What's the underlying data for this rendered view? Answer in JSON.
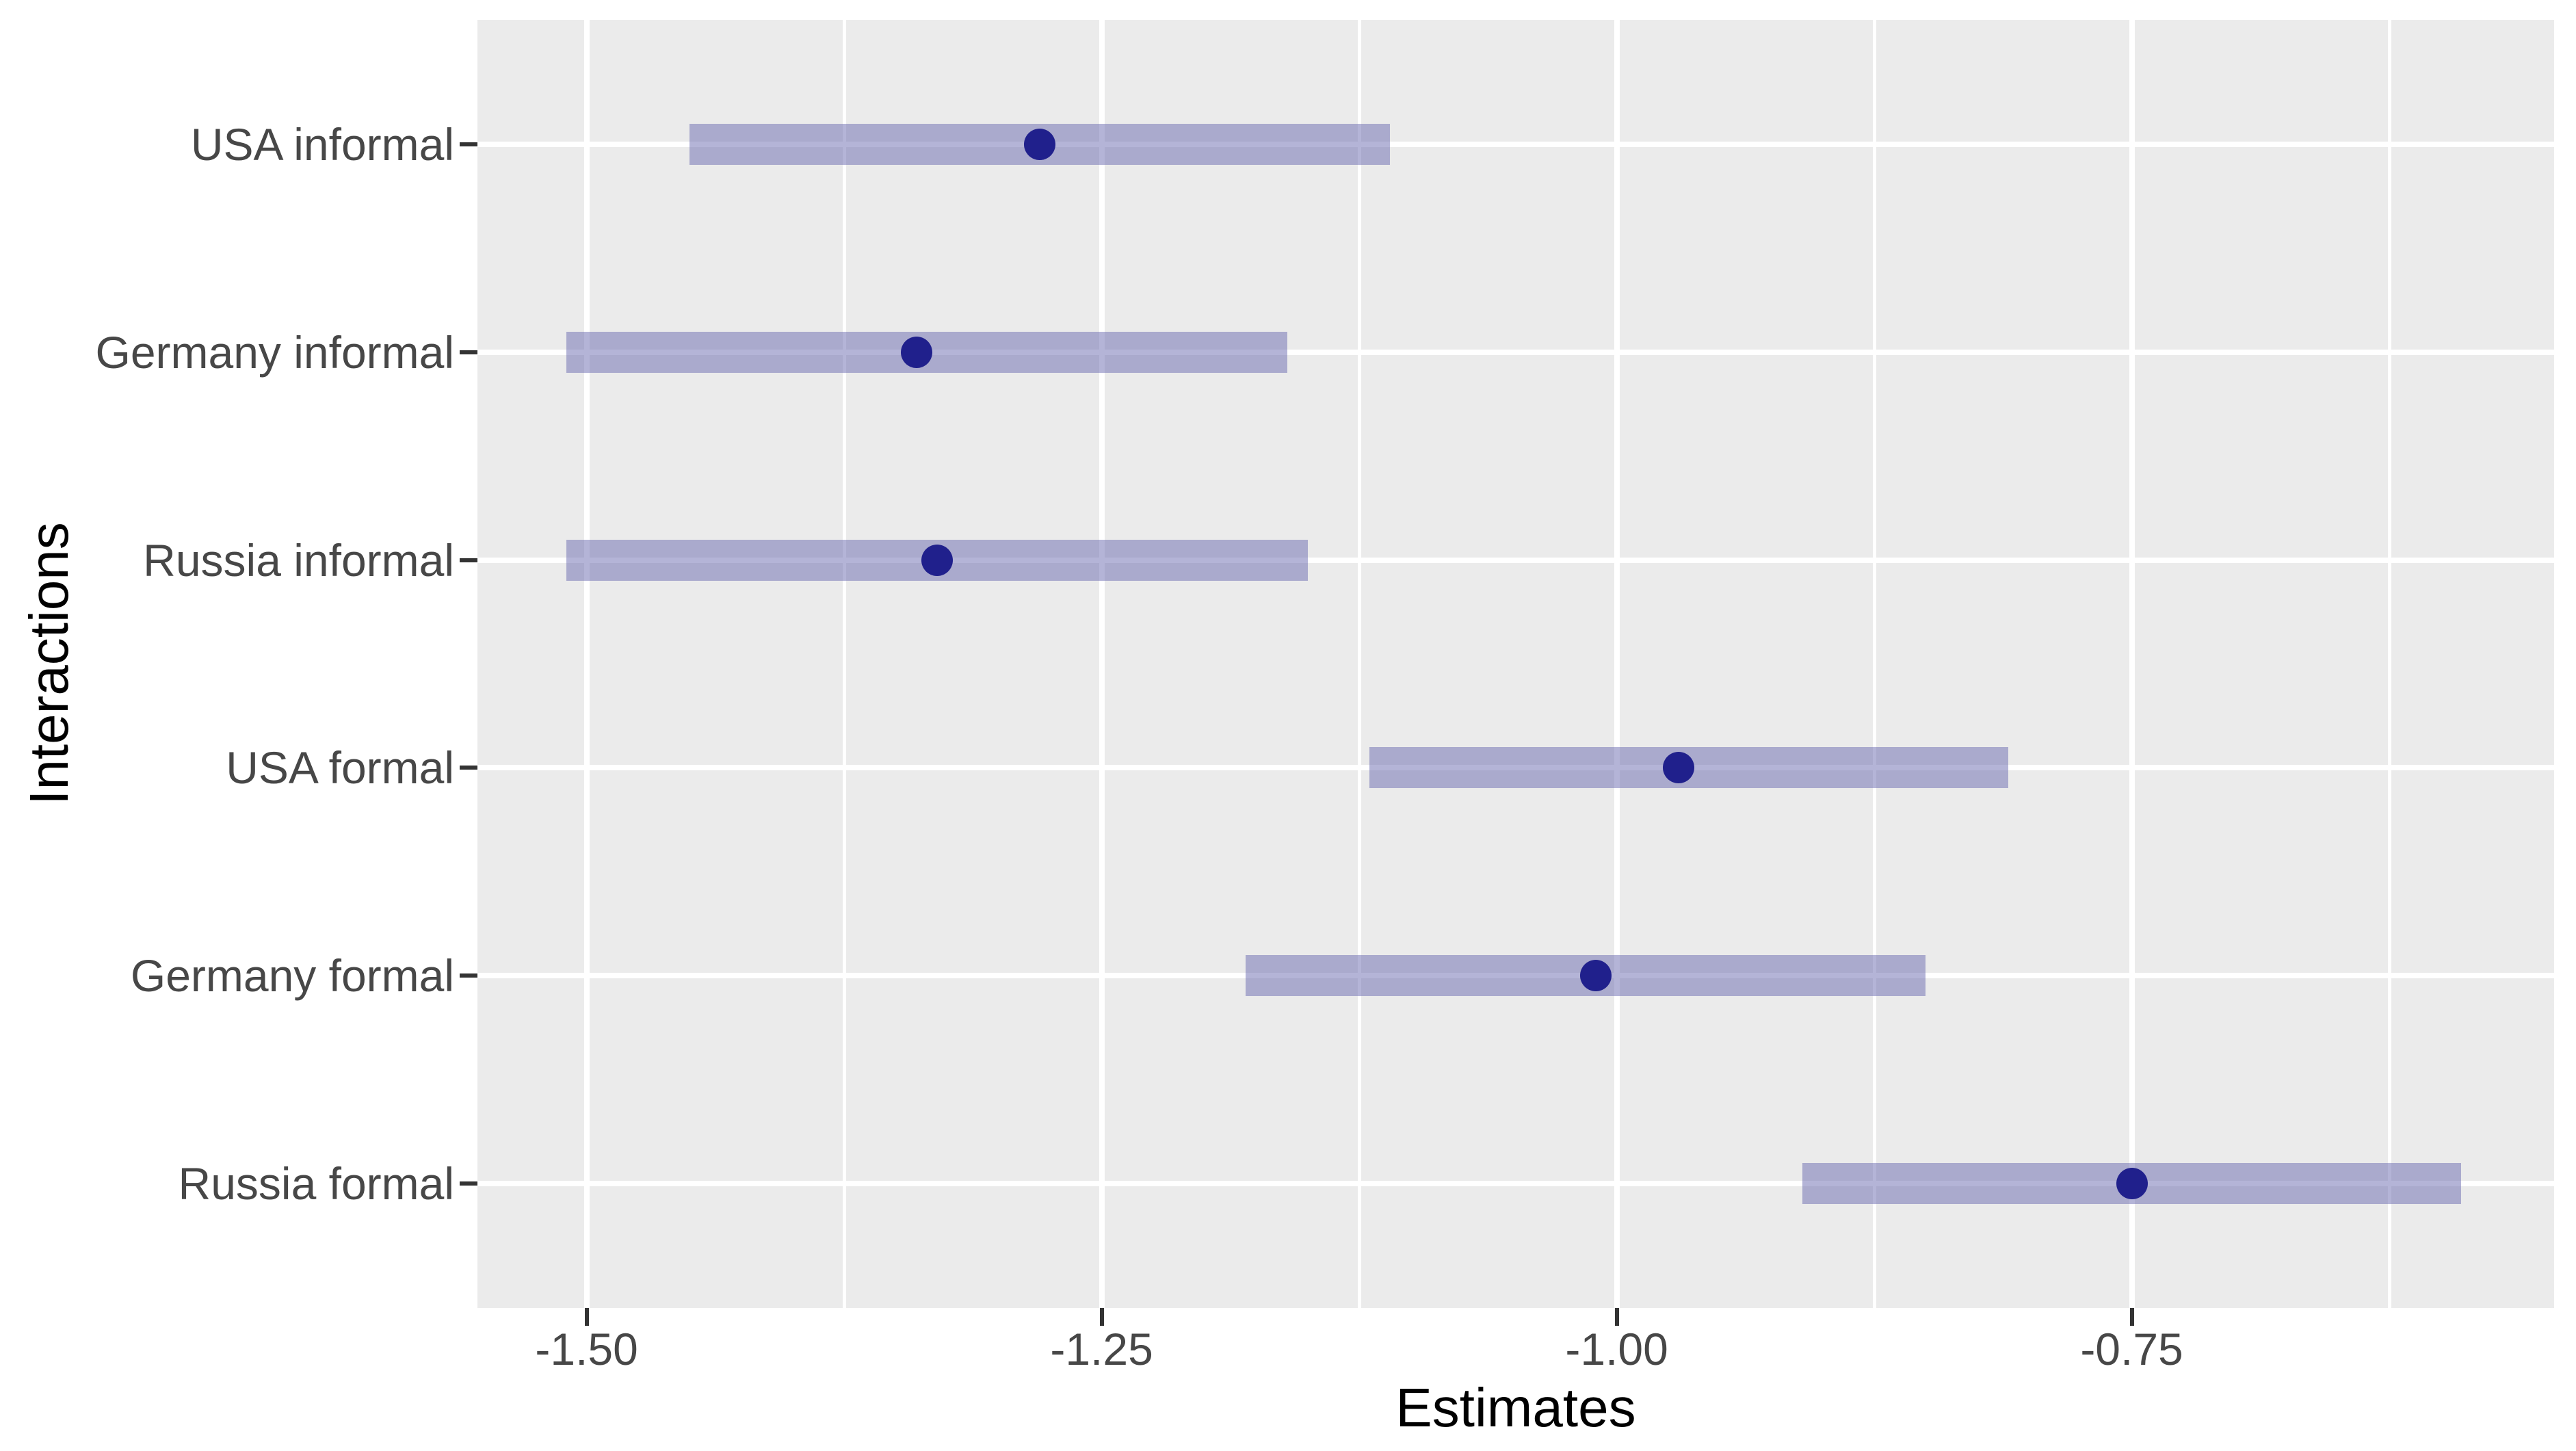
{
  "chart_data": {
    "type": "scatter",
    "subtype": "coefficient-pointrange-plot",
    "title": "",
    "xlabel": "Estimates",
    "ylabel": "Interactions",
    "categories": [
      "USA informal",
      "Germany informal",
      "Russia informal",
      "USA formal",
      "Germany formal",
      "Russia formal"
    ],
    "series": [
      {
        "name": "estimates-with-confidence-intervals",
        "points": [
          {
            "label": "USA informal",
            "estimate": -1.28,
            "ci_low": -1.45,
            "ci_high": -1.11
          },
          {
            "label": "Germany informal",
            "estimate": -1.34,
            "ci_low": -1.51,
            "ci_high": -1.16
          },
          {
            "label": "Russia informal",
            "estimate": -1.33,
            "ci_low": -1.51,
            "ci_high": -1.15
          },
          {
            "label": "USA formal",
            "estimate": -0.97,
            "ci_low": -1.12,
            "ci_high": -0.81
          },
          {
            "label": "Germany formal",
            "estimate": -1.01,
            "ci_low": -1.18,
            "ci_high": -0.85
          },
          {
            "label": "Russia formal",
            "estimate": -0.75,
            "ci_low": -0.91,
            "ci_high": -0.59
          }
        ]
      }
    ],
    "x_axis": {
      "domain": [
        -1.553,
        -0.545
      ],
      "ticks": [
        {
          "value": -1.5,
          "label": "-1.50"
        },
        {
          "value": -1.25,
          "label": "-1.25"
        },
        {
          "value": -1.0,
          "label": "-1.00"
        },
        {
          "value": -0.75,
          "label": "-0.75"
        }
      ],
      "minor_ticks": [
        -1.375,
        -1.125,
        -0.875,
        -0.625
      ],
      "grid": true
    },
    "y_axis": {
      "grid": true
    },
    "legend": "none",
    "colors": {
      "panel_background": "#EBEBEB",
      "gridline": "#FFFFFF",
      "interval_bar": "rgba(105,105,175,0.5)",
      "point": "#20208C",
      "tick_label": "#474747",
      "axis_title": "#000000",
      "tick_mark": "#333333"
    }
  }
}
